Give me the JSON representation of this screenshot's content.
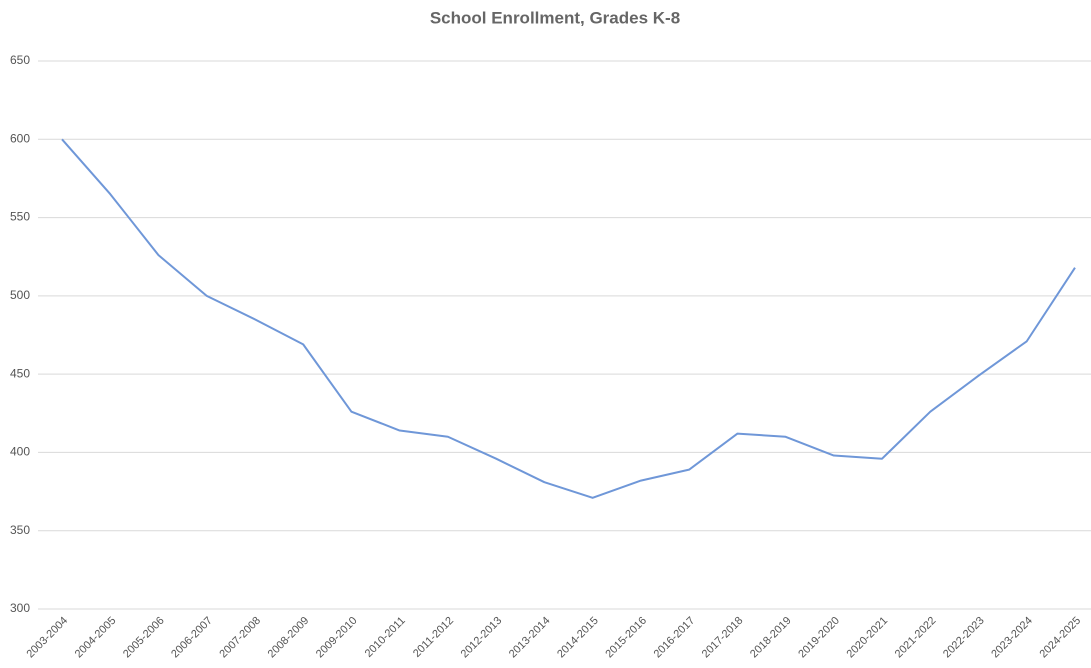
{
  "chart_data": {
    "type": "line",
    "title": "School Enrollment, Grades K-8",
    "categories": [
      "2003-2004",
      "2004-2005",
      "2005-2006",
      "2006-2007",
      "2007-2008",
      "2008-2009",
      "2009-2010",
      "2010-2011",
      "2011-2012",
      "2012-2013",
      "2013-2014",
      "2014-2015",
      "2015-2016",
      "2016-2017",
      "2017-2018",
      "2018-2019",
      "2019-2020",
      "2020-2021",
      "2021-2022",
      "2022-2023",
      "2023-2024",
      "2024-2025"
    ],
    "values": [
      600,
      565,
      526,
      500,
      485,
      469,
      426,
      414,
      410,
      396,
      381,
      371,
      382,
      389,
      412,
      410,
      398,
      396,
      426,
      449,
      471,
      518
    ],
    "color": "#6f97d8",
    "ylim": [
      300,
      650
    ],
    "yticks": [
      300,
      350,
      400,
      450,
      500,
      550,
      600,
      650
    ],
    "grid": true
  }
}
